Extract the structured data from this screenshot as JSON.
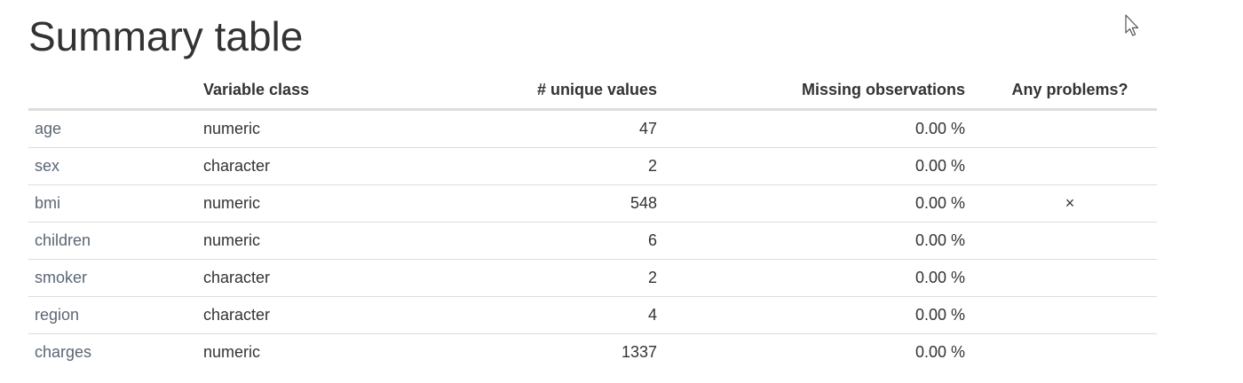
{
  "title": "Summary table",
  "columns": {
    "name": "",
    "variable_class": "Variable class",
    "unique_values": "# unique values",
    "missing": "Missing observations",
    "problems": "Any problems?"
  },
  "rows": [
    {
      "name": "age",
      "class": "numeric",
      "unique": "47",
      "missing": "0.00 %",
      "problem": ""
    },
    {
      "name": "sex",
      "class": "character",
      "unique": "2",
      "missing": "0.00 %",
      "problem": ""
    },
    {
      "name": "bmi",
      "class": "numeric",
      "unique": "548",
      "missing": "0.00 %",
      "problem": "×"
    },
    {
      "name": "children",
      "class": "numeric",
      "unique": "6",
      "missing": "0.00 %",
      "problem": ""
    },
    {
      "name": "smoker",
      "class": "character",
      "unique": "2",
      "missing": "0.00 %",
      "problem": ""
    },
    {
      "name": "region",
      "class": "character",
      "unique": "4",
      "missing": "0.00 %",
      "problem": ""
    },
    {
      "name": "charges",
      "class": "numeric",
      "unique": "1337",
      "missing": "0.00 %",
      "problem": ""
    }
  ],
  "icons": {
    "cursor": "mouse-pointer-icon"
  }
}
